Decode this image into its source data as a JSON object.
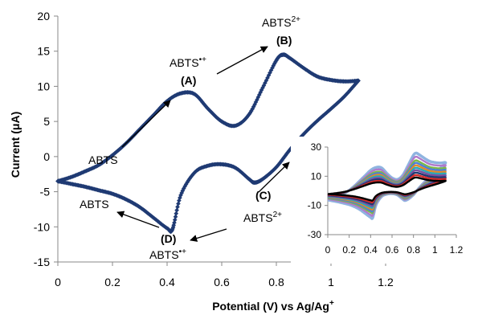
{
  "chart_data": [
    {
      "type": "line",
      "xlabel": "Potential (V) vs Ag/Ag",
      "xlabel_sup": "+",
      "ylabel": "Current (μA)",
      "xlim": [
        0,
        1.2
      ],
      "ylim": [
        -15,
        20
      ],
      "xticks": [
        "0",
        "0.2",
        "0.4",
        "0.6",
        "0.8",
        "1",
        "1.2"
      ],
      "yticks": [
        "20",
        "15",
        "10",
        "5",
        "0",
        "-5",
        "-10",
        "-15"
      ],
      "grid": false,
      "series": [
        {
          "color": "#1f3a73",
          "marker": "diamond",
          "forward_scan": {
            "x": [
              0.0,
              0.05,
              0.1,
              0.15,
              0.2,
              0.25,
              0.3,
              0.35,
              0.4,
              0.45,
              0.5,
              0.55,
              0.6,
              0.65,
              0.7,
              0.75,
              0.8,
              0.825,
              0.85,
              0.9,
              0.95,
              1.0,
              1.05,
              1.1
            ],
            "y": [
              -3.5,
              -2.9,
              -2.1,
              -1.2,
              0.2,
              1.9,
              3.9,
              5.9,
              7.9,
              9.0,
              8.9,
              6.8,
              5.0,
              4.4,
              6.0,
              9.8,
              13.7,
              14.5,
              14.0,
              12.6,
              11.4,
              10.9,
              10.7,
              10.8
            ]
          },
          "reverse_scan": {
            "x": [
              1.1,
              1.05,
              1.0,
              0.95,
              0.9,
              0.85,
              0.8,
              0.75,
              0.72,
              0.7,
              0.65,
              0.6,
              0.55,
              0.5,
              0.45,
              0.42,
              0.4,
              0.35,
              0.3,
              0.25,
              0.2,
              0.15,
              0.1,
              0.05,
              0.0
            ],
            "y": [
              10.8,
              8.6,
              6.8,
              5.1,
              3.2,
              1.0,
              -1.5,
              -3.2,
              -3.7,
              -3.2,
              -1.6,
              -1.1,
              -1.3,
              -2.3,
              -5.5,
              -10.3,
              -10.2,
              -8.7,
              -7.2,
              -6.1,
              -5.3,
              -4.8,
              -4.3,
              -3.9,
              -3.5
            ]
          }
        }
      ],
      "annotations": [
        {
          "text": "ABTS",
          "sup": "•+"
        },
        {
          "text": "(A)",
          "bold": true
        },
        {
          "text": "ABTS",
          "sup": "2+"
        },
        {
          "text": "(B)",
          "bold": true
        },
        {
          "text": "ABTS"
        },
        {
          "text": "(C)",
          "bold": true
        },
        {
          "text": "ABTS",
          "sup": "2+"
        },
        {
          "text": "ABTS"
        },
        {
          "text": "(D)",
          "bold": true
        },
        {
          "text": "ABTS",
          "sup": "•+"
        }
      ]
    },
    {
      "type": "line",
      "inset": true,
      "xlim": [
        0,
        1.2
      ],
      "ylim": [
        -30,
        30
      ],
      "xticks": [
        "0",
        "0.2",
        "0.4",
        "0.6",
        "0.8",
        "1",
        "1.2"
      ],
      "yticks": [
        "30",
        "10",
        "-10",
        "-30"
      ],
      "series_scales": [
        0.55,
        0.65,
        0.75,
        0.85,
        0.95,
        1.05,
        1.15,
        1.25,
        1.4,
        1.55
      ],
      "series_colors": [
        "#000000",
        "#d12a2a",
        "#1f3a73",
        "#7a4fa0",
        "#2aa8b8",
        "#e08a2a",
        "#4d7ed8",
        "#7bb84a",
        "#b07acb",
        "#8fb4e0"
      ]
    }
  ]
}
